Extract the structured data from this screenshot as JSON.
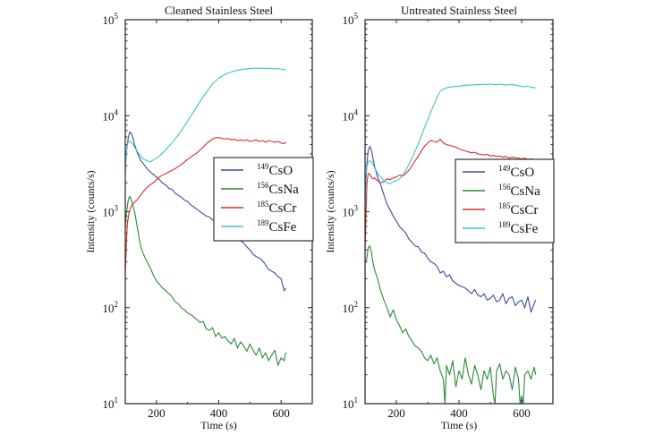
{
  "chart_data": [
    {
      "type": "line",
      "title": "Cleaned Stainless Steel",
      "xlabel": "Time (s)",
      "ylabel": "Intensity (counts/s)",
      "xlim": [
        100,
        700
      ],
      "ylim": [
        10,
        100000
      ],
      "yscale": "log",
      "xticks": [
        200,
        400,
        600
      ],
      "xtick_labels": [
        "200",
        "400",
        "600"
      ],
      "yticks": [
        10,
        100,
        1000,
        10000,
        100000
      ],
      "ytick_labels": [
        {
          "base": "10",
          "exp": "1"
        },
        {
          "base": "10",
          "exp": "2"
        },
        {
          "base": "10",
          "exp": "3"
        },
        {
          "base": "10",
          "exp": "4"
        },
        {
          "base": "10",
          "exp": "5"
        }
      ],
      "grid": false,
      "legend_position": "center-right",
      "series": [
        {
          "name": "CsO",
          "mass": "149",
          "color": "#3a4aa0",
          "x": [
            100,
            105,
            110,
            115,
            120,
            125,
            130,
            140,
            150,
            160,
            170,
            180,
            190,
            200,
            210,
            220,
            230,
            240,
            250,
            260,
            270,
            280,
            290,
            300,
            310,
            320,
            330,
            340,
            350,
            360,
            370,
            380,
            390,
            400,
            410,
            420,
            430,
            440,
            450,
            460,
            470,
            480,
            490,
            500,
            510,
            520,
            530,
            540,
            550,
            560,
            570,
            580,
            590,
            600,
            610,
            615
          ],
          "y": [
            3000,
            4500,
            6000,
            6800,
            6500,
            5800,
            5000,
            4000,
            3400,
            3100,
            2800,
            2600,
            2450,
            2300,
            2150,
            1980,
            1900,
            1750,
            1700,
            1560,
            1480,
            1420,
            1320,
            1280,
            1180,
            1120,
            1060,
            1000,
            950,
            900,
            880,
            820,
            790,
            760,
            700,
            680,
            640,
            600,
            560,
            520,
            500,
            470,
            430,
            400,
            360,
            340,
            330,
            310,
            280,
            250,
            240,
            230,
            210,
            200,
            150,
            160
          ]
        },
        {
          "name": "CsNa",
          "mass": "156",
          "color": "#2a8a34",
          "x": [
            100,
            103,
            106,
            110,
            115,
            120,
            125,
            130,
            135,
            140,
            145,
            150,
            160,
            170,
            180,
            190,
            200,
            210,
            220,
            230,
            240,
            250,
            260,
            270,
            280,
            290,
            300,
            310,
            320,
            330,
            340,
            350,
            360,
            370,
            380,
            390,
            400,
            410,
            420,
            430,
            440,
            450,
            460,
            470,
            480,
            490,
            500,
            510,
            520,
            530,
            540,
            550,
            560,
            570,
            580,
            590,
            600,
            610,
            615
          ],
          "y": [
            700,
            900,
            1100,
            1350,
            1450,
            1300,
            1150,
            1000,
            800,
            650,
            520,
            430,
            350,
            300,
            260,
            220,
            190,
            175,
            160,
            150,
            140,
            130,
            115,
            110,
            100,
            95,
            88,
            85,
            80,
            75,
            70,
            72,
            60,
            58,
            62,
            50,
            55,
            48,
            50,
            45,
            42,
            48,
            38,
            44,
            40,
            35,
            42,
            36,
            32,
            38,
            30,
            34,
            28,
            32,
            36,
            25,
            30,
            28,
            34
          ]
        },
        {
          "name": "CsCr",
          "mass": "185",
          "color": "#d92b2b",
          "x": [
            100,
            103,
            106,
            110,
            115,
            120,
            125,
            130,
            140,
            150,
            160,
            170,
            180,
            190,
            200,
            210,
            220,
            230,
            240,
            250,
            260,
            270,
            280,
            290,
            300,
            310,
            320,
            330,
            340,
            350,
            360,
            370,
            380,
            390,
            400,
            410,
            420,
            430,
            440,
            450,
            460,
            470,
            480,
            490,
            500,
            510,
            520,
            530,
            540,
            550,
            560,
            570,
            580,
            590,
            600,
            610,
            615
          ],
          "y": [
            230,
            400,
            700,
            900,
            1050,
            1150,
            1200,
            1250,
            1350,
            1500,
            1650,
            1800,
            1900,
            2000,
            2150,
            2300,
            2400,
            2500,
            2600,
            2700,
            2800,
            2950,
            3100,
            3300,
            3500,
            3700,
            3900,
            4100,
            4400,
            4700,
            5100,
            5400,
            5700,
            5900,
            5900,
            5800,
            5700,
            5800,
            5600,
            5700,
            5500,
            5600,
            5500,
            5600,
            5400,
            5500,
            5600,
            5400,
            5500,
            5300,
            5500,
            5400,
            5300,
            5400,
            5200,
            5100,
            5300
          ]
        },
        {
          "name": "CsFe",
          "mass": "189",
          "color": "#3ec1c8",
          "x": [
            100,
            103,
            106,
            110,
            115,
            120,
            125,
            130,
            140,
            150,
            160,
            170,
            180,
            190,
            200,
            210,
            220,
            230,
            240,
            250,
            260,
            270,
            280,
            290,
            300,
            310,
            320,
            330,
            340,
            350,
            360,
            370,
            380,
            390,
            400,
            410,
            420,
            430,
            440,
            450,
            460,
            470,
            480,
            490,
            500,
            510,
            520,
            530,
            540,
            550,
            560,
            570,
            580,
            590,
            600,
            610,
            615
          ],
          "y": [
            2500,
            4000,
            5000,
            5300,
            5400,
            5200,
            5000,
            4700,
            4200,
            3800,
            3500,
            3400,
            3300,
            3450,
            3600,
            3800,
            4100,
            4400,
            4800,
            5200,
            5700,
            6300,
            7000,
            7800,
            8800,
            9900,
            11000,
            12500,
            14000,
            15800,
            17500,
            19500,
            21500,
            23000,
            24500,
            25800,
            26800,
            27800,
            28500,
            29200,
            29800,
            30200,
            30500,
            30800,
            31000,
            31200,
            31300,
            31200,
            31300,
            31200,
            31000,
            31100,
            30800,
            30900,
            30500,
            30200,
            30000
          ]
        }
      ]
    },
    {
      "type": "line",
      "title": "Untreated Stainless Steel",
      "xlabel": "Time (s)",
      "ylabel": "Intensity (counts/s)",
      "xlim": [
        100,
        700
      ],
      "ylim": [
        10,
        100000
      ],
      "yscale": "log",
      "xticks": [
        200,
        400,
        600
      ],
      "xtick_labels": [
        "200",
        "400",
        "600"
      ],
      "yticks": [
        10,
        100,
        1000,
        10000,
        100000
      ],
      "ytick_labels": [
        {
          "base": "10",
          "exp": "1"
        },
        {
          "base": "10",
          "exp": "2"
        },
        {
          "base": "10",
          "exp": "3"
        },
        {
          "base": "10",
          "exp": "4"
        },
        {
          "base": "10",
          "exp": "5"
        }
      ],
      "grid": false,
      "legend_position": "center-right",
      "series": [
        {
          "name": "CsO",
          "mass": "149",
          "color": "#3a4aa0",
          "x": [
            100,
            105,
            110,
            115,
            120,
            125,
            130,
            140,
            150,
            160,
            170,
            180,
            190,
            200,
            210,
            220,
            230,
            240,
            250,
            260,
            270,
            280,
            290,
            300,
            310,
            320,
            330,
            340,
            350,
            360,
            370,
            380,
            390,
            400,
            410,
            420,
            430,
            440,
            450,
            460,
            470,
            480,
            490,
            500,
            510,
            520,
            530,
            540,
            550,
            560,
            570,
            580,
            590,
            600,
            610,
            620,
            630,
            640,
            645
          ],
          "y": [
            1500,
            3000,
            4300,
            4800,
            4400,
            3600,
            3000,
            2300,
            1900,
            1500,
            1200,
            1050,
            900,
            800,
            700,
            650,
            600,
            520,
            480,
            440,
            430,
            380,
            370,
            330,
            300,
            290,
            270,
            230,
            240,
            210,
            220,
            190,
            180,
            170,
            165,
            160,
            150,
            140,
            155,
            135,
            130,
            140,
            120,
            125,
            135,
            115,
            120,
            140,
            110,
            125,
            130,
            105,
            115,
            120,
            100,
            130,
            90,
            110,
            120
          ]
        },
        {
          "name": "CsNa",
          "mass": "156",
          "color": "#2a8a34",
          "x": [
            100,
            105,
            110,
            115,
            120,
            125,
            130,
            140,
            150,
            160,
            170,
            180,
            190,
            200,
            210,
            220,
            230,
            240,
            250,
            260,
            270,
            280,
            290,
            300,
            310,
            320,
            330,
            340,
            350,
            355,
            360,
            370,
            380,
            390,
            400,
            410,
            420,
            430,
            440,
            450,
            460,
            470,
            480,
            490,
            500,
            510,
            515,
            520,
            530,
            540,
            550,
            560,
            570,
            580,
            590,
            595,
            600,
            605,
            610,
            620,
            630,
            640,
            645
          ],
          "y": [
            300,
            320,
            420,
            440,
            380,
            300,
            250,
            200,
            150,
            120,
            100,
            80,
            95,
            75,
            65,
            55,
            60,
            50,
            45,
            40,
            38,
            35,
            30,
            28,
            32,
            26,
            30,
            22,
            18,
            10,
            25,
            20,
            28,
            15,
            22,
            18,
            30,
            20,
            16,
            25,
            20,
            14,
            22,
            18,
            24,
            12,
            10,
            22,
            26,
            18,
            22,
            20,
            14,
            24,
            18,
            10,
            12,
            10,
            20,
            22,
            18,
            24,
            20
          ]
        },
        {
          "name": "CsCr",
          "mass": "185",
          "color": "#d92b2b",
          "x": [
            100,
            103,
            106,
            110,
            115,
            120,
            125,
            130,
            140,
            150,
            160,
            170,
            180,
            190,
            200,
            210,
            220,
            230,
            240,
            250,
            260,
            270,
            280,
            290,
            300,
            310,
            320,
            330,
            340,
            350,
            360,
            370,
            380,
            390,
            400,
            410,
            420,
            430,
            440,
            450,
            460,
            470,
            480,
            490,
            500,
            510,
            520,
            530,
            540,
            550,
            560,
            570,
            580,
            590,
            600,
            610,
            620,
            630,
            640,
            645
          ],
          "y": [
            400,
            1000,
            2000,
            2500,
            2450,
            2300,
            2200,
            2250,
            2100,
            2000,
            2050,
            2200,
            2150,
            2250,
            2300,
            2400,
            2350,
            2500,
            2700,
            3000,
            3400,
            3800,
            4300,
            4800,
            5200,
            5500,
            5400,
            5300,
            5700,
            5200,
            5000,
            4900,
            4800,
            4700,
            4500,
            4400,
            4300,
            4200,
            4100,
            4150,
            4000,
            3950,
            3900,
            3950,
            3800,
            3850,
            3750,
            3800,
            3700,
            3750,
            3600,
            3700,
            3650,
            3600,
            3550,
            3600,
            3500,
            3550,
            3500,
            3450
          ]
        },
        {
          "name": "CsFe",
          "mass": "189",
          "color": "#3ec1c8",
          "x": [
            100,
            103,
            106,
            110,
            115,
            120,
            125,
            130,
            140,
            150,
            160,
            170,
            180,
            190,
            200,
            210,
            220,
            230,
            240,
            250,
            260,
            270,
            280,
            290,
            300,
            310,
            320,
            330,
            340,
            350,
            360,
            370,
            380,
            390,
            400,
            410,
            420,
            430,
            440,
            450,
            460,
            470,
            480,
            490,
            500,
            510,
            520,
            530,
            540,
            550,
            560,
            570,
            580,
            590,
            600,
            610,
            620,
            630,
            640,
            645
          ],
          "y": [
            1200,
            2200,
            3000,
            3300,
            3400,
            3300,
            3100,
            2900,
            2500,
            2300,
            2100,
            2000,
            1950,
            2050,
            2100,
            2200,
            2400,
            2700,
            3100,
            3600,
            4300,
            5100,
            6200,
            7500,
            9000,
            11000,
            13000,
            15500,
            18000,
            19000,
            19500,
            19800,
            20000,
            20200,
            20300,
            20500,
            20700,
            20800,
            20900,
            21000,
            21200,
            21000,
            21300,
            21100,
            21400,
            21200,
            21000,
            21300,
            21100,
            20900,
            21000,
            21200,
            20800,
            20500,
            20200,
            20000,
            20200,
            19800,
            19600,
            19500
          ]
        }
      ]
    }
  ]
}
